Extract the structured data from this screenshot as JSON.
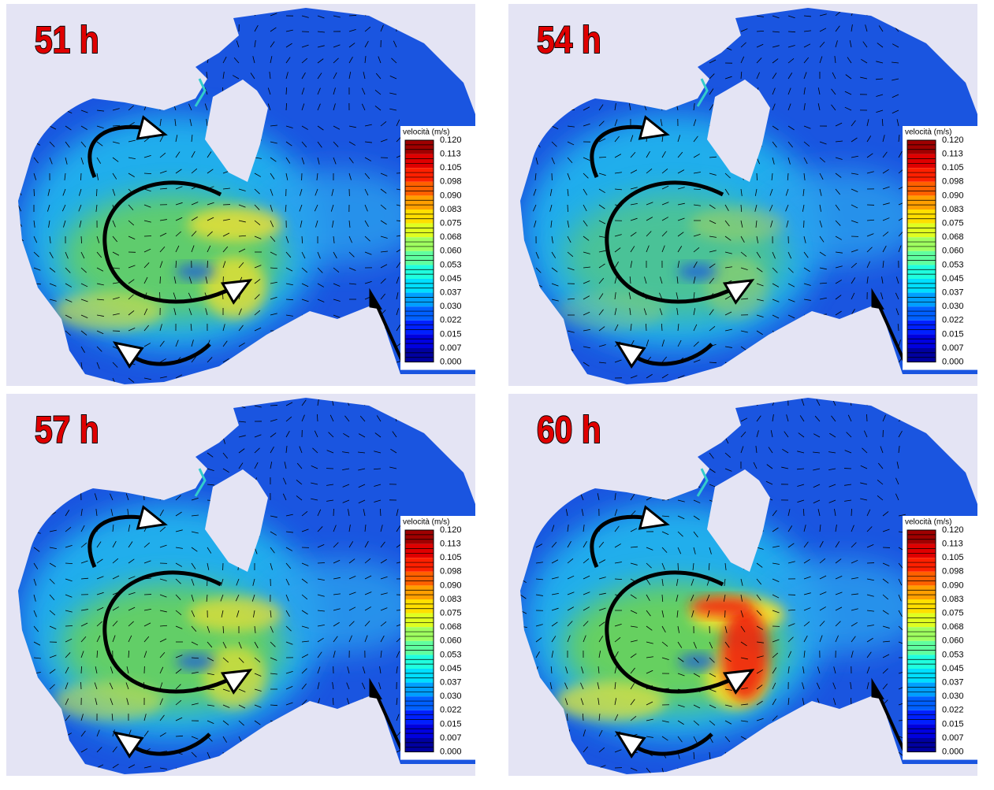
{
  "panels": [
    {
      "label": "51 h",
      "legend": {
        "title": "velocità (m/s)",
        "labels": [
          "0.120",
          "0.113",
          "0.105",
          "0.098",
          "0.090",
          "0.083",
          "0.075",
          "0.068",
          "0.060",
          "0.053",
          "0.045",
          "0.037",
          "0.030",
          "0.022",
          "0.015",
          "0.007",
          "0.000"
        ]
      }
    },
    {
      "label": "54 h",
      "legend": {
        "title": "velocità (m/s)",
        "labels": [
          "0.120",
          "0.113",
          "0.105",
          "0.098",
          "0.090",
          "0.083",
          "0.075",
          "0.068",
          "0.060",
          "0.053",
          "0.045",
          "0.037",
          "0.030",
          "0.022",
          "0.015",
          "0.007",
          "0.000"
        ]
      }
    },
    {
      "label": "57 h",
      "legend": {
        "title": "velocità (m/s)",
        "labels": [
          "0.120",
          "0.113",
          "0.105",
          "0.098",
          "0.090",
          "0.083",
          "0.075",
          "0.068",
          "0.060",
          "0.053",
          "0.045",
          "0.037",
          "0.030",
          "0.022",
          "0.015",
          "0.007",
          "0.000"
        ]
      }
    },
    {
      "label": "60 h",
      "legend": {
        "title": "velocità (m/s)",
        "labels": [
          "0.120",
          "0.113",
          "0.105",
          "0.098",
          "0.090",
          "0.083",
          "0.075",
          "0.068",
          "0.060",
          "0.053",
          "0.045",
          "0.037",
          "0.030",
          "0.022",
          "0.015",
          "0.007",
          "0.000"
        ]
      }
    }
  ]
}
